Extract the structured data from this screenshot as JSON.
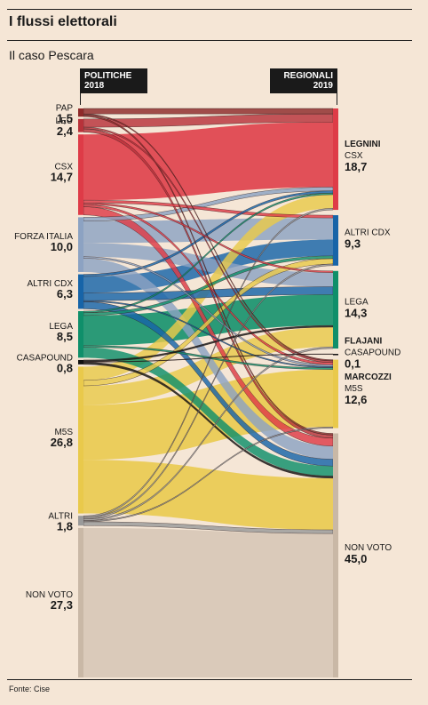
{
  "title": "I flussi elettorali",
  "subtitle": "Il caso Pescara",
  "header_left": {
    "line1": "POLITICHE",
    "line2": "2018"
  },
  "header_right": {
    "line1": "REGIONALI",
    "line2": "2019"
  },
  "source": "Fonte: Cise",
  "chart_data": {
    "type": "sankey",
    "left_nodes": [
      {
        "id": "pap",
        "label": "PAP",
        "value": 1.5,
        "value_text": "1,5",
        "color": "#8e2a2a"
      },
      {
        "id": "leu",
        "label": "LEU",
        "value": 2.4,
        "value_text": "2,4",
        "color": "#b8323a"
      },
      {
        "id": "csx",
        "label": "CSX",
        "value": 14.7,
        "value_text": "14,7",
        "color": "#de3b47"
      },
      {
        "id": "fi",
        "label": "FORZA ITALIA",
        "value": 10.0,
        "value_text": "10,0",
        "color": "#8ca2c2"
      },
      {
        "id": "altricdx",
        "label": "ALTRI CDX",
        "value": 6.3,
        "value_text": "6,3",
        "color": "#1764a8"
      },
      {
        "id": "lega",
        "label": "LEGA",
        "value": 8.5,
        "value_text": "8,5",
        "color": "#0f8f6a"
      },
      {
        "id": "casapound",
        "label": "CASAPOUND",
        "value": 0.8,
        "value_text": "0,8",
        "color": "#111111"
      },
      {
        "id": "m5s",
        "label": "M5S",
        "value": 26.8,
        "value_text": "26,8",
        "color": "#e9c94b"
      },
      {
        "id": "altri",
        "label": "ALTRI",
        "value": 1.8,
        "value_text": "1,8",
        "color": "#9a9a9a"
      },
      {
        "id": "nonvoto",
        "label": "NON VOTO",
        "value": 27.3,
        "value_text": "27,3",
        "color": "#d6c6b6"
      }
    ],
    "right_nodes": [
      {
        "id": "r_csx",
        "candidate": "LEGNINI",
        "label": "CSX",
        "value": 18.7,
        "value_text": "18,7",
        "color": "#de3b47"
      },
      {
        "id": "r_altricdx",
        "candidate": "",
        "label": "ALTRI CDX",
        "value": 9.3,
        "value_text": "9,3",
        "color": "#1764a8"
      },
      {
        "id": "r_lega",
        "candidate": "",
        "label": "LEGA",
        "value": 14.3,
        "value_text": "14,3",
        "color": "#0f8f6a"
      },
      {
        "id": "r_casapound",
        "candidate": "FLAJANI",
        "label": "CASAPOUND",
        "value": 0.1,
        "value_text": "0,1",
        "color": "#111111"
      },
      {
        "id": "r_m5s",
        "candidate": "MARCOZZI",
        "label": "M5S",
        "value": 12.6,
        "value_text": "12,6",
        "color": "#e9c94b"
      },
      {
        "id": "r_nonvoto",
        "candidate": "",
        "label": "NON VOTO",
        "value": 45.0,
        "value_text": "45,0",
        "color": "#d6c6b6"
      }
    ],
    "flows": [
      {
        "from": "pap",
        "to": "r_csx",
        "value": 1.0
      },
      {
        "from": "pap",
        "to": "r_m5s",
        "value": 0.2
      },
      {
        "from": "pap",
        "to": "r_nonvoto",
        "value": 0.3
      },
      {
        "from": "leu",
        "to": "r_csx",
        "value": 1.5
      },
      {
        "from": "leu",
        "to": "r_m5s",
        "value": 0.3
      },
      {
        "from": "leu",
        "to": "r_nonvoto",
        "value": 0.6
      },
      {
        "from": "csx",
        "to": "r_csx",
        "value": 12.0
      },
      {
        "from": "csx",
        "to": "r_altricdx",
        "value": 0.5
      },
      {
        "from": "csx",
        "to": "r_lega",
        "value": 0.3
      },
      {
        "from": "csx",
        "to": "r_m5s",
        "value": 0.4
      },
      {
        "from": "csx",
        "to": "r_nonvoto",
        "value": 1.5
      },
      {
        "from": "fi",
        "to": "r_csx",
        "value": 0.7
      },
      {
        "from": "fi",
        "to": "r_altricdx",
        "value": 4.0
      },
      {
        "from": "fi",
        "to": "r_lega",
        "value": 2.5
      },
      {
        "from": "fi",
        "to": "r_m5s",
        "value": 0.3
      },
      {
        "from": "fi",
        "to": "r_nonvoto",
        "value": 2.5
      },
      {
        "from": "altricdx",
        "to": "r_csx",
        "value": 0.4
      },
      {
        "from": "altricdx",
        "to": "r_altricdx",
        "value": 3.0
      },
      {
        "from": "altricdx",
        "to": "r_lega",
        "value": 1.4
      },
      {
        "from": "altricdx",
        "to": "r_m5s",
        "value": 0.2
      },
      {
        "from": "altricdx",
        "to": "r_nonvoto",
        "value": 1.3
      },
      {
        "from": "lega",
        "to": "r_csx",
        "value": 0.3
      },
      {
        "from": "lega",
        "to": "r_altricdx",
        "value": 0.5
      },
      {
        "from": "lega",
        "to": "r_lega",
        "value": 5.5
      },
      {
        "from": "lega",
        "to": "r_m5s",
        "value": 0.3
      },
      {
        "from": "lega",
        "to": "r_nonvoto",
        "value": 1.9
      },
      {
        "from": "casapound",
        "to": "r_lega",
        "value": 0.3
      },
      {
        "from": "casapound",
        "to": "r_casapound",
        "value": 0.1
      },
      {
        "from": "casapound",
        "to": "r_nonvoto",
        "value": 0.4
      },
      {
        "from": "m5s",
        "to": "r_csx",
        "value": 2.5
      },
      {
        "from": "m5s",
        "to": "r_altricdx",
        "value": 1.0
      },
      {
        "from": "m5s",
        "to": "r_lega",
        "value": 3.5
      },
      {
        "from": "m5s",
        "to": "r_m5s",
        "value": 10.0
      },
      {
        "from": "m5s",
        "to": "r_nonvoto",
        "value": 9.8
      },
      {
        "from": "altri",
        "to": "r_csx",
        "value": 0.3
      },
      {
        "from": "altri",
        "to": "r_altricdx",
        "value": 0.3
      },
      {
        "from": "altri",
        "to": "r_lega",
        "value": 0.3
      },
      {
        "from": "altri",
        "to": "r_m5s",
        "value": 0.2
      },
      {
        "from": "altri",
        "to": "r_nonvoto",
        "value": 0.7
      },
      {
        "from": "nonvoto",
        "to": "r_nonvoto",
        "value": 27.3
      }
    ]
  }
}
